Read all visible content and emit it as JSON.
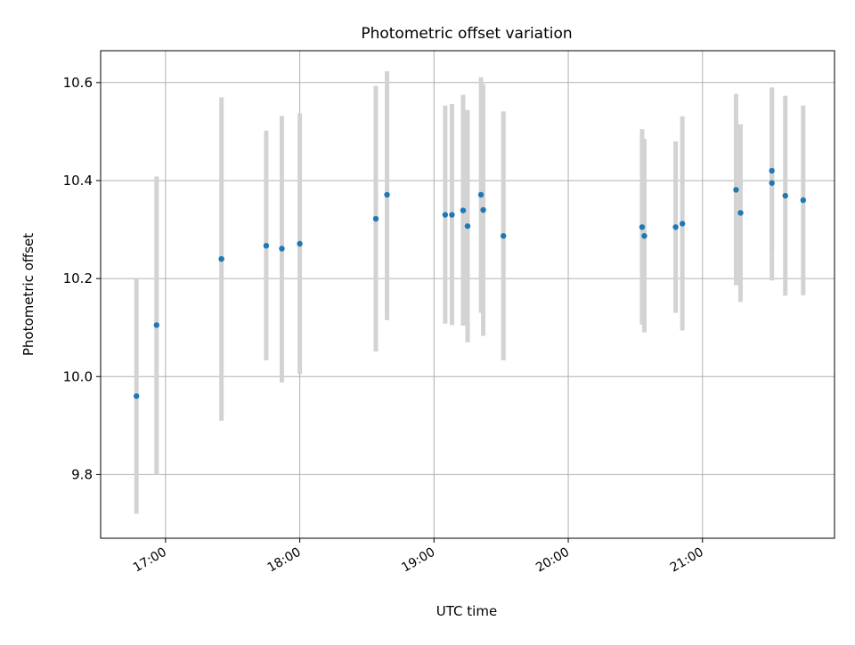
{
  "chart_data": {
    "type": "scatter",
    "title": "Photometric offset variation",
    "xlabel": "UTC time",
    "ylabel": "Photometric offset",
    "grid": true,
    "xlim": [
      "16:31",
      "21:59"
    ],
    "ylim": [
      9.67,
      10.665
    ],
    "x_ticks": [
      "17:00",
      "18:00",
      "19:00",
      "20:00",
      "21:00"
    ],
    "y_ticks": [
      9.8,
      10.0,
      10.2,
      10.4,
      10.6
    ],
    "colors": {
      "marker": "#1f77b4",
      "errorbar": "#d3d3d3",
      "grid": "#b0b0b0",
      "axes": "#000000",
      "background": "#ffffff"
    },
    "points": [
      {
        "x": "16:47",
        "y": 9.96,
        "ylow": 9.72,
        "yhigh": 10.2
      },
      {
        "x": "16:56",
        "y": 10.105,
        "ylow": 9.8,
        "yhigh": 10.408
      },
      {
        "x": "17:25",
        "y": 10.24,
        "ylow": 9.91,
        "yhigh": 10.57
      },
      {
        "x": "17:45",
        "y": 10.267,
        "ylow": 10.033,
        "yhigh": 10.502
      },
      {
        "x": "17:52",
        "y": 10.261,
        "ylow": 9.988,
        "yhigh": 10.532
      },
      {
        "x": "18:00",
        "y": 10.271,
        "ylow": 10.005,
        "yhigh": 10.537
      },
      {
        "x": "18:34",
        "y": 10.322,
        "ylow": 10.051,
        "yhigh": 10.593
      },
      {
        "x": "18:39",
        "y": 10.371,
        "ylow": 10.115,
        "yhigh": 10.623
      },
      {
        "x": "19:05",
        "y": 10.33,
        "ylow": 10.108,
        "yhigh": 10.553
      },
      {
        "x": "19:08",
        "y": 10.33,
        "ylow": 10.105,
        "yhigh": 10.556
      },
      {
        "x": "19:13",
        "y": 10.339,
        "ylow": 10.104,
        "yhigh": 10.575
      },
      {
        "x": "19:15",
        "y": 10.307,
        "ylow": 10.07,
        "yhigh": 10.544
      },
      {
        "x": "19:21",
        "y": 10.371,
        "ylow": 10.13,
        "yhigh": 10.611
      },
      {
        "x": "19:22",
        "y": 10.34,
        "ylow": 10.083,
        "yhigh": 10.597
      },
      {
        "x": "19:31",
        "y": 10.287,
        "ylow": 10.033,
        "yhigh": 10.541
      },
      {
        "x": "20:33",
        "y": 10.305,
        "ylow": 10.106,
        "yhigh": 10.505
      },
      {
        "x": "20:34",
        "y": 10.287,
        "ylow": 10.09,
        "yhigh": 10.485
      },
      {
        "x": "20:48",
        "y": 10.305,
        "ylow": 10.13,
        "yhigh": 10.48
      },
      {
        "x": "20:51",
        "y": 10.312,
        "ylow": 10.094,
        "yhigh": 10.531
      },
      {
        "x": "21:15",
        "y": 10.381,
        "ylow": 10.186,
        "yhigh": 10.577
      },
      {
        "x": "21:17",
        "y": 10.334,
        "ylow": 10.152,
        "yhigh": 10.515
      },
      {
        "x": "21:31",
        "y": 10.42,
        "ylow": 10.255,
        "yhigh": 10.585
      },
      {
        "x": "21:31",
        "y": 10.395,
        "ylow": 10.196,
        "yhigh": 10.59
      },
      {
        "x": "21:37",
        "y": 10.369,
        "ylow": 10.165,
        "yhigh": 10.573
      },
      {
        "x": "21:45",
        "y": 10.36,
        "ylow": 10.166,
        "yhigh": 10.553
      }
    ]
  }
}
